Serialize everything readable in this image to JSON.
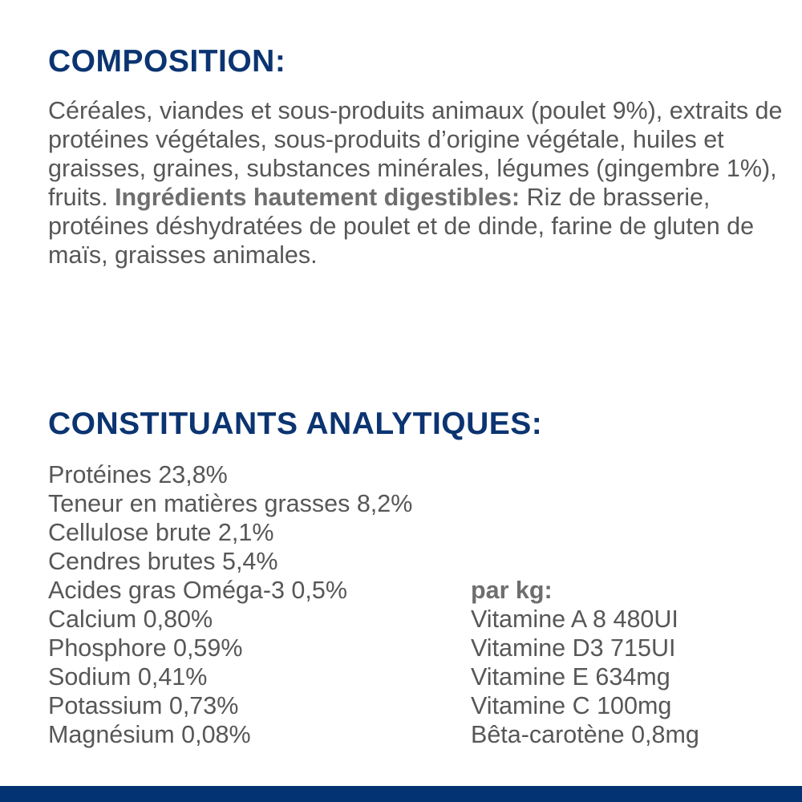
{
  "composition": {
    "title": "COMPOSITION:",
    "text": "Céréales, viandes et sous-produits animaux (poulet 9%), extraits de protéines végétales, sous-produits d’origine végétale, huiles et graisses, graines, substances minérales, légumes (gingembre 1%), fruits.",
    "highlight_label": "Ingrédients hautement digestibles:",
    "highlight_text": " Riz de brasserie, protéines déshydratées de poulet et de dinde, farine de gluten de maïs, graisses animales."
  },
  "analytical": {
    "title": "CONSTITUANTS ANALYTIQUES:",
    "items": [
      "Protéines 23,8%",
      "Teneur en matières grasses 8,2%",
      "Cellulose brute 2,1%",
      "Cendres brutes 5,4%",
      "Acides gras Oméga-3 0,5%",
      "Calcium 0,80%",
      "Phosphore 0,59%",
      "Sodium 0,41%",
      "Potassium 0,73%",
      "Magnésium 0,08%"
    ],
    "per_kg": {
      "label": "par kg:",
      "items": [
        "Vitamine A 8 480UI",
        "Vitamine D3 715UI",
        "Vitamine E 634mg",
        "Vitamine C 100mg",
        "Bêta-carotène 0,8mg"
      ]
    }
  },
  "colors": {
    "heading": "#0b3471",
    "footer_bar": "#033372",
    "text": "#575757"
  }
}
